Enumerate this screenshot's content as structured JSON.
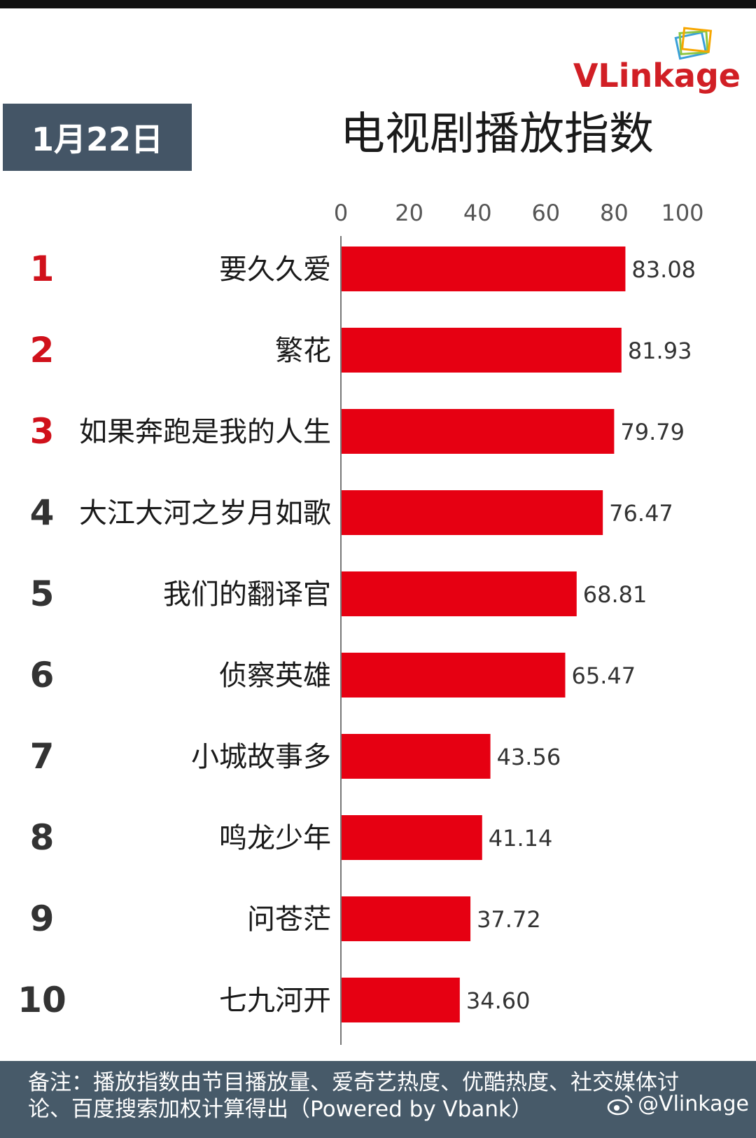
{
  "logo": {
    "text": "VLinkage"
  },
  "date": "1月22日",
  "title": "电视剧播放指数",
  "footer": {
    "note": "备注：播放指数由节目播放量、爱奇艺热度、优酷热度、社交媒体讨论、百度搜索加权计算得出（Powered by Vbank）",
    "weibo": "@Vlinkage"
  },
  "colors": {
    "bar": "#e60012",
    "rank_top": "#d0111b",
    "rank_other": "#333333",
    "date_bg": "#445566",
    "footer_bg": "#475a69"
  },
  "chart_data": {
    "type": "bar",
    "orientation": "horizontal",
    "title": "电视剧播放指数",
    "xlim": [
      0,
      100
    ],
    "x_ticks": [
      "0",
      "20",
      "40",
      "60",
      "80",
      "100"
    ],
    "categories": [
      "要久久爱",
      "繁花",
      "如果奔跑是我的人生",
      "大江大河之岁月如歌",
      "我们的翻译官",
      "侦察英雄",
      "小城故事多",
      "鸣龙少年",
      "问苍茫",
      "七九河开"
    ],
    "ranks": [
      "1",
      "2",
      "3",
      "4",
      "5",
      "6",
      "7",
      "8",
      "9",
      "10"
    ],
    "values": [
      83.08,
      81.93,
      79.79,
      76.47,
      68.81,
      65.47,
      43.56,
      41.14,
      37.72,
      34.6
    ],
    "value_labels": [
      "83.08",
      "81.93",
      "79.79",
      "76.47",
      "68.81",
      "65.47",
      "43.56",
      "41.14",
      "37.72",
      "34.60"
    ]
  }
}
